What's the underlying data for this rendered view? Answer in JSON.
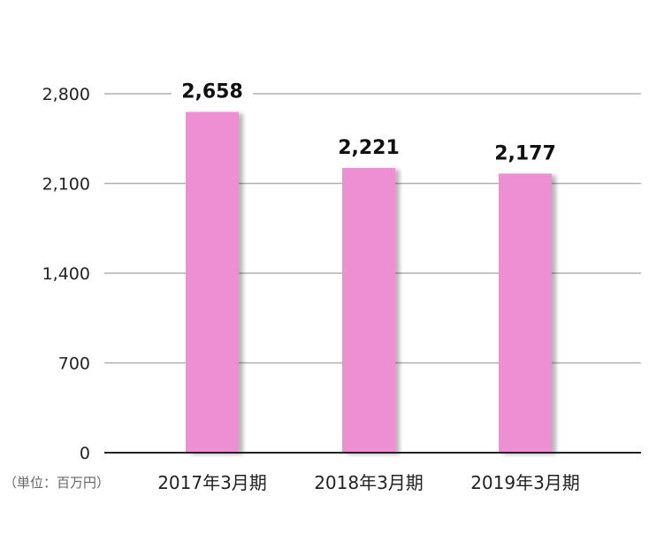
{
  "chart_data": {
    "type": "bar",
    "categories": [
      "2017年3月期",
      "2018年3月期",
      "2019年3月期"
    ],
    "values": [
      2658,
      2221,
      2177
    ],
    "value_labels": [
      "2,658",
      "2,221",
      "2,177"
    ],
    "ylim": [
      0,
      2800
    ],
    "yticks": [
      0,
      700,
      1400,
      2100,
      2800
    ],
    "ytick_labels": [
      "0",
      "700",
      "1,400",
      "2,100",
      "2,800"
    ],
    "unit_label": "（単位：百万円）",
    "title": "",
    "xlabel": "",
    "ylabel": "",
    "grid": true,
    "legend": "none",
    "colors": {
      "bar": "#ee8fd4",
      "bar_shadow": "#d9d9d9",
      "grid": "#b0b0b0",
      "axis": "#222222"
    }
  }
}
